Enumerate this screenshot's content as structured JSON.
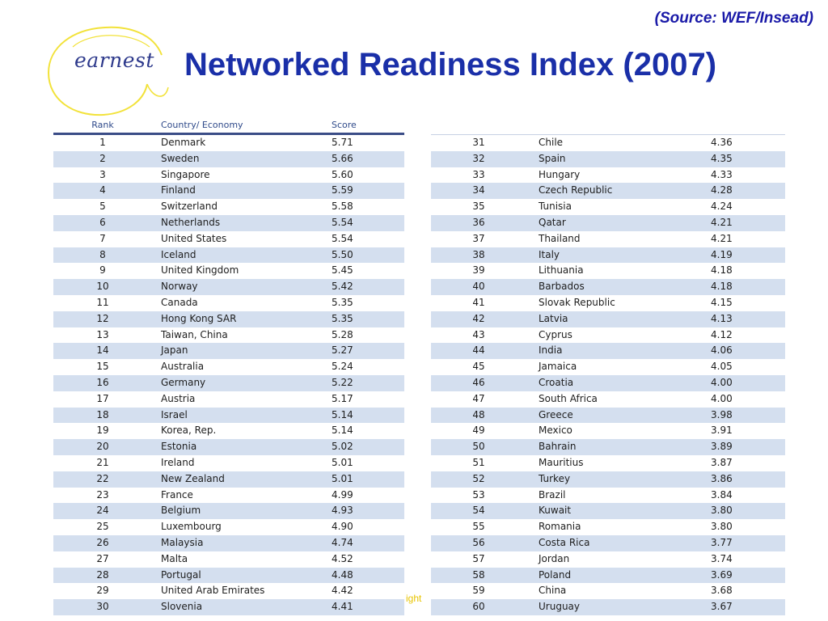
{
  "source": "(Source: WEF/Insead)",
  "title": "Networked Readiness Index (2007)",
  "logo": {
    "text": "earnest",
    "swirl_color": "#f2e23a",
    "text_color": "#2e3a8c"
  },
  "footer_fragment": "ight",
  "table": {
    "headers": {
      "rank": "Rank",
      "country": "Country/ Economy",
      "score": "Score"
    },
    "left_rows": [
      {
        "rank": "1",
        "country": "Denmark",
        "score": "5.71"
      },
      {
        "rank": "2",
        "country": "Sweden",
        "score": "5.66"
      },
      {
        "rank": "3",
        "country": "Singapore",
        "score": "5.60"
      },
      {
        "rank": "4",
        "country": "Finland",
        "score": "5.59"
      },
      {
        "rank": "5",
        "country": "Switzerland",
        "score": "5.58"
      },
      {
        "rank": "6",
        "country": "Netherlands",
        "score": "5.54"
      },
      {
        "rank": "7",
        "country": "United States",
        "score": "5.54"
      },
      {
        "rank": "8",
        "country": "Iceland",
        "score": "5.50"
      },
      {
        "rank": "9",
        "country": "United Kingdom",
        "score": "5.45"
      },
      {
        "rank": "10",
        "country": "Norway",
        "score": "5.42"
      },
      {
        "rank": "11",
        "country": "Canada",
        "score": "5.35"
      },
      {
        "rank": "12",
        "country": "Hong Kong SAR",
        "score": "5.35"
      },
      {
        "rank": "13",
        "country": "Taiwan, China",
        "score": "5.28"
      },
      {
        "rank": "14",
        "country": "Japan",
        "score": "5.27"
      },
      {
        "rank": "15",
        "country": "Australia",
        "score": "5.24"
      },
      {
        "rank": "16",
        "country": "Germany",
        "score": "5.22"
      },
      {
        "rank": "17",
        "country": "Austria",
        "score": "5.17"
      },
      {
        "rank": "18",
        "country": "Israel",
        "score": "5.14"
      },
      {
        "rank": "19",
        "country": "Korea, Rep.",
        "score": "5.14"
      },
      {
        "rank": "20",
        "country": "Estonia",
        "score": "5.02"
      },
      {
        "rank": "21",
        "country": "Ireland",
        "score": "5.01"
      },
      {
        "rank": "22",
        "country": "New Zealand",
        "score": "5.01"
      },
      {
        "rank": "23",
        "country": "France",
        "score": "4.99"
      },
      {
        "rank": "24",
        "country": "Belgium",
        "score": "4.93"
      },
      {
        "rank": "25",
        "country": "Luxembourg",
        "score": "4.90"
      },
      {
        "rank": "26",
        "country": "Malaysia",
        "score": "4.74"
      },
      {
        "rank": "27",
        "country": "Malta",
        "score": "4.52"
      },
      {
        "rank": "28",
        "country": "Portugal",
        "score": "4.48"
      },
      {
        "rank": "29",
        "country": "United Arab Emirates",
        "score": "4.42"
      },
      {
        "rank": "30",
        "country": "Slovenia",
        "score": "4.41"
      }
    ],
    "right_rows": [
      {
        "rank": "31",
        "country": "Chile",
        "score": "4.36"
      },
      {
        "rank": "32",
        "country": "Spain",
        "score": "4.35"
      },
      {
        "rank": "33",
        "country": "Hungary",
        "score": "4.33"
      },
      {
        "rank": "34",
        "country": "Czech Republic",
        "score": "4.28"
      },
      {
        "rank": "35",
        "country": "Tunisia",
        "score": "4.24"
      },
      {
        "rank": "36",
        "country": "Qatar",
        "score": "4.21"
      },
      {
        "rank": "37",
        "country": "Thailand",
        "score": "4.21"
      },
      {
        "rank": "38",
        "country": "Italy",
        "score": "4.19"
      },
      {
        "rank": "39",
        "country": "Lithuania",
        "score": "4.18"
      },
      {
        "rank": "40",
        "country": "Barbados",
        "score": "4.18"
      },
      {
        "rank": "41",
        "country": "Slovak Republic",
        "score": "4.15"
      },
      {
        "rank": "42",
        "country": "Latvia",
        "score": "4.13"
      },
      {
        "rank": "43",
        "country": "Cyprus",
        "score": "4.12"
      },
      {
        "rank": "44",
        "country": "India",
        "score": "4.06"
      },
      {
        "rank": "45",
        "country": "Jamaica",
        "score": "4.05"
      },
      {
        "rank": "46",
        "country": "Croatia",
        "score": "4.00"
      },
      {
        "rank": "47",
        "country": "South Africa",
        "score": "4.00"
      },
      {
        "rank": "48",
        "country": "Greece",
        "score": "3.98"
      },
      {
        "rank": "49",
        "country": "Mexico",
        "score": "3.91"
      },
      {
        "rank": "50",
        "country": "Bahrain",
        "score": "3.89"
      },
      {
        "rank": "51",
        "country": "Mauritius",
        "score": "3.87"
      },
      {
        "rank": "52",
        "country": "Turkey",
        "score": "3.86"
      },
      {
        "rank": "53",
        "country": "Brazil",
        "score": "3.84"
      },
      {
        "rank": "54",
        "country": "Kuwait",
        "score": "3.80"
      },
      {
        "rank": "55",
        "country": "Romania",
        "score": "3.80"
      },
      {
        "rank": "56",
        "country": "Costa Rica",
        "score": "3.77"
      },
      {
        "rank": "57",
        "country": "Jordan",
        "score": "3.74"
      },
      {
        "rank": "58",
        "country": "Poland",
        "score": "3.69"
      },
      {
        "rank": "59",
        "country": "China",
        "score": "3.68"
      },
      {
        "rank": "60",
        "country": "Uruguay",
        "score": "3.67"
      }
    ]
  }
}
